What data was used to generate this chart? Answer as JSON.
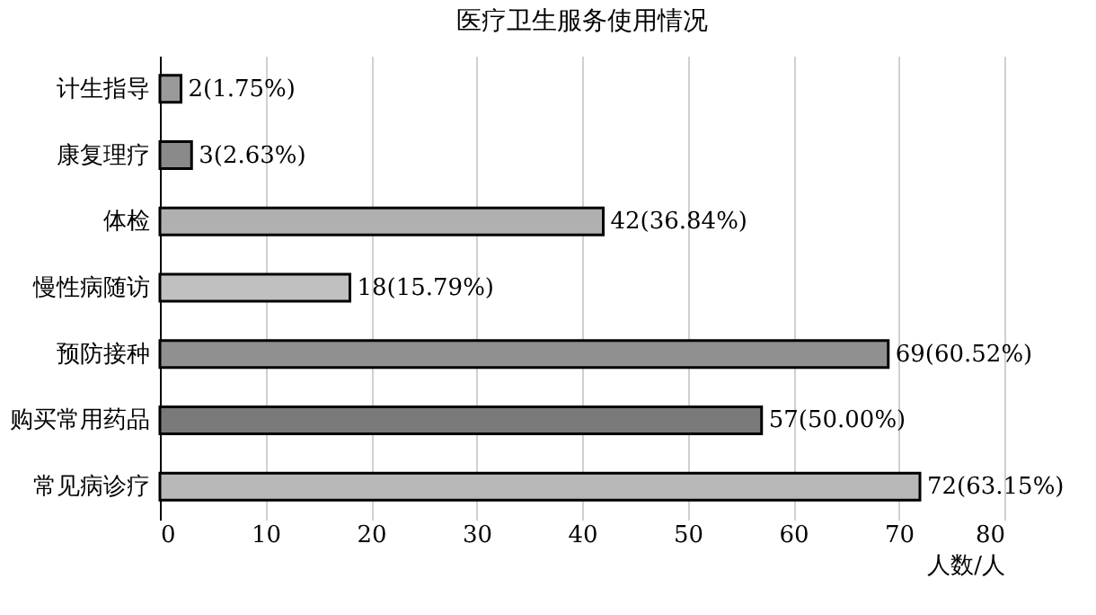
{
  "chart_data": {
    "type": "bar",
    "orientation": "horizontal",
    "title": "医疗卫生服务使用情况",
    "xlabel": "人数/人",
    "categories": [
      "计生指导",
      "康复理疗",
      "体检",
      "慢性病随访",
      "预防接种",
      "购买常用药品",
      "常见病诊疗"
    ],
    "values": [
      2,
      3,
      42,
      18,
      69,
      57,
      72
    ],
    "value_labels": [
      "2(1.75%)",
      "3(2.63%)",
      "42(36.84%)",
      "18(15.79%)",
      "69(60.52%)",
      "57(50.00%)",
      "72(63.15%)"
    ],
    "colors": [
      "#9a9a9a",
      "#8a8a8a",
      "#b0b0b0",
      "#c0c0c0",
      "#909090",
      "#7a7a7a",
      "#b8b8b8"
    ],
    "xlim": [
      0,
      80
    ],
    "xticks": [
      0,
      10,
      20,
      30,
      40,
      50,
      60,
      70,
      80
    ],
    "grid": "x"
  }
}
